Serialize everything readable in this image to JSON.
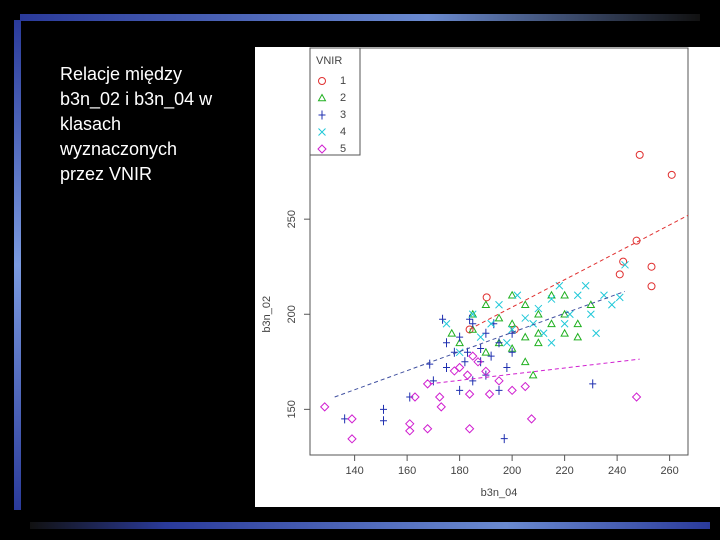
{
  "slide_text": [
    "Relacje między",
    "b3n_02 i b3n_04 w",
    "klasach",
    "wyznaczonych",
    "przez VNIR"
  ],
  "chart_data": {
    "type": "scatter",
    "x_label": "b3n_04",
    "y_label": "b3n_02",
    "legend_title": "VNIR",
    "legend": "top-left",
    "xlim": [
      123,
      267
    ],
    "ylim": [
      126,
      340
    ],
    "xticks": [
      140,
      160,
      180,
      200,
      220,
      240,
      260
    ],
    "yticks": [
      150,
      200,
      250
    ],
    "series": [
      {
        "name": "1",
        "color": "#e03030",
        "marker": "circle",
        "x": [
          248.6,
          260.8,
          247.4,
          253.1,
          253.1,
          241,
          242.3,
          190.3,
          201,
          183.8
        ],
        "y": [
          283.8,
          273.3,
          238.7,
          225,
          214.7,
          221,
          227.7,
          208.9,
          192,
          192
        ]
      },
      {
        "name": "2",
        "color": "#20b020",
        "marker": "triangle",
        "x": [
          185,
          190,
          195,
          200,
          200,
          205,
          205,
          210,
          210,
          215,
          215,
          220,
          220,
          225,
          230,
          180,
          195,
          200,
          205,
          210,
          220,
          225,
          185,
          190,
          208,
          177
        ],
        "y": [
          192,
          205,
          198,
          210,
          195,
          188,
          205,
          200,
          185,
          195,
          210,
          190,
          200,
          195,
          205,
          185,
          185,
          182,
          175,
          190,
          210,
          188,
          200,
          180,
          168,
          190
        ]
      },
      {
        "name": "3",
        "color": "#2030b0",
        "marker": "plus",
        "x": [
          136.2,
          151,
          151,
          161,
          168.6,
          173.5,
          183.8,
          197,
          230.7,
          175,
          178,
          180,
          182,
          185,
          188,
          190,
          192,
          195,
          198,
          200,
          185,
          190,
          195,
          180,
          175,
          200,
          188,
          193,
          183,
          170
        ],
        "y": [
          145,
          150,
          144,
          156.5,
          173.8,
          197.4,
          197.4,
          134.6,
          163.4,
          172,
          180,
          188,
          175,
          165,
          182,
          190,
          178,
          185,
          172,
          180,
          195,
          168,
          160,
          160,
          185,
          190,
          175,
          195,
          180,
          165
        ]
      },
      {
        "name": "4",
        "color": "#20c8d8",
        "marker": "x",
        "x": [
          243,
          241,
          175,
          185,
          195,
          200,
          205,
          210,
          215,
          220,
          225,
          230,
          232,
          235,
          238,
          228,
          218,
          212,
          202,
          192,
          188,
          180,
          198,
          208,
          222,
          215
        ],
        "y": [
          226,
          208.9,
          195,
          200,
          205,
          192,
          198,
          203,
          208,
          195,
          210,
          200,
          190,
          210,
          205,
          215,
          215,
          190,
          210,
          195,
          188,
          180,
          185,
          195,
          200,
          185
        ]
      },
      {
        "name": "5",
        "color": "#d020d0",
        "marker": "diamond",
        "x": [
          128.6,
          139,
          139,
          161,
          161,
          167.8,
          163,
          167.8,
          172.4,
          173,
          178,
          183.8,
          191.4,
          183.8,
          207.4,
          247.4,
          180,
          183,
          187,
          185,
          195,
          200,
          205,
          190
        ],
        "y": [
          151.3,
          145,
          134.5,
          142.4,
          138.7,
          139.8,
          156.5,
          163.4,
          156.5,
          151.3,
          170.2,
          158,
          158,
          139.8,
          145,
          156.5,
          172,
          168,
          175,
          178,
          165,
          160,
          162,
          170
        ]
      }
    ],
    "trend_lines": [
      {
        "color": "#e03030",
        "x": [
          183.8,
          267
        ],
        "y": [
          192.1,
          252
        ]
      },
      {
        "color": "#4050a0",
        "x": [
          132.4,
          242.9
        ],
        "y": [
          156.5,
          212
        ]
      },
      {
        "color": "#d020d0",
        "x": [
          168.6,
          248.6
        ],
        "y": [
          163.4,
          176.4
        ]
      }
    ]
  }
}
